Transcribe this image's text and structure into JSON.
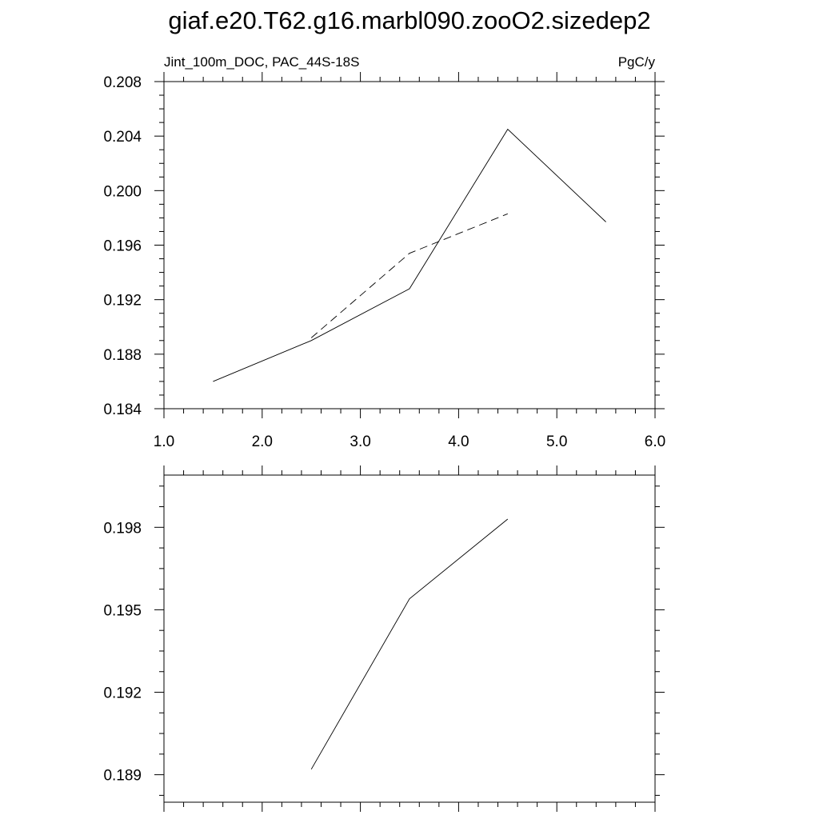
{
  "title": "giaf.e20.T62.g16.marbl090.zooO2.sizedep2",
  "chart_data": [
    {
      "type": "line",
      "left_label": "Jint_100m_DOC, PAC_44S-18S",
      "right_label": "PgC/y",
      "xlim": [
        1.0,
        6.0
      ],
      "ylim": [
        0.184,
        0.208
      ],
      "x_ticks": [
        "1.0",
        "2.0",
        "3.0",
        "4.0",
        "5.0",
        "6.0"
      ],
      "y_ticks": [
        "0.184",
        "0.188",
        "0.192",
        "0.196",
        "0.200",
        "0.204",
        "0.208"
      ],
      "series": [
        {
          "style": "solid",
          "x": [
            1.5,
            2.5,
            3.5,
            4.5,
            5.5
          ],
          "y": [
            0.186,
            0.189,
            0.1928,
            0.2045,
            0.1977
          ]
        },
        {
          "style": "dashed",
          "x": [
            2.5,
            3.5,
            4.5
          ],
          "y": [
            0.1892,
            0.1954,
            0.1983
          ]
        }
      ]
    },
    {
      "type": "line",
      "xlim": [
        1.0,
        6.0
      ],
      "ylim": [
        0.188,
        0.1999
      ],
      "y_ticks": [
        "0.189",
        "0.192",
        "0.195",
        "0.198"
      ],
      "series": [
        {
          "style": "solid",
          "x": [
            2.5,
            3.5,
            4.5
          ],
          "y": [
            0.1892,
            0.1954,
            0.1983
          ]
        }
      ]
    }
  ]
}
